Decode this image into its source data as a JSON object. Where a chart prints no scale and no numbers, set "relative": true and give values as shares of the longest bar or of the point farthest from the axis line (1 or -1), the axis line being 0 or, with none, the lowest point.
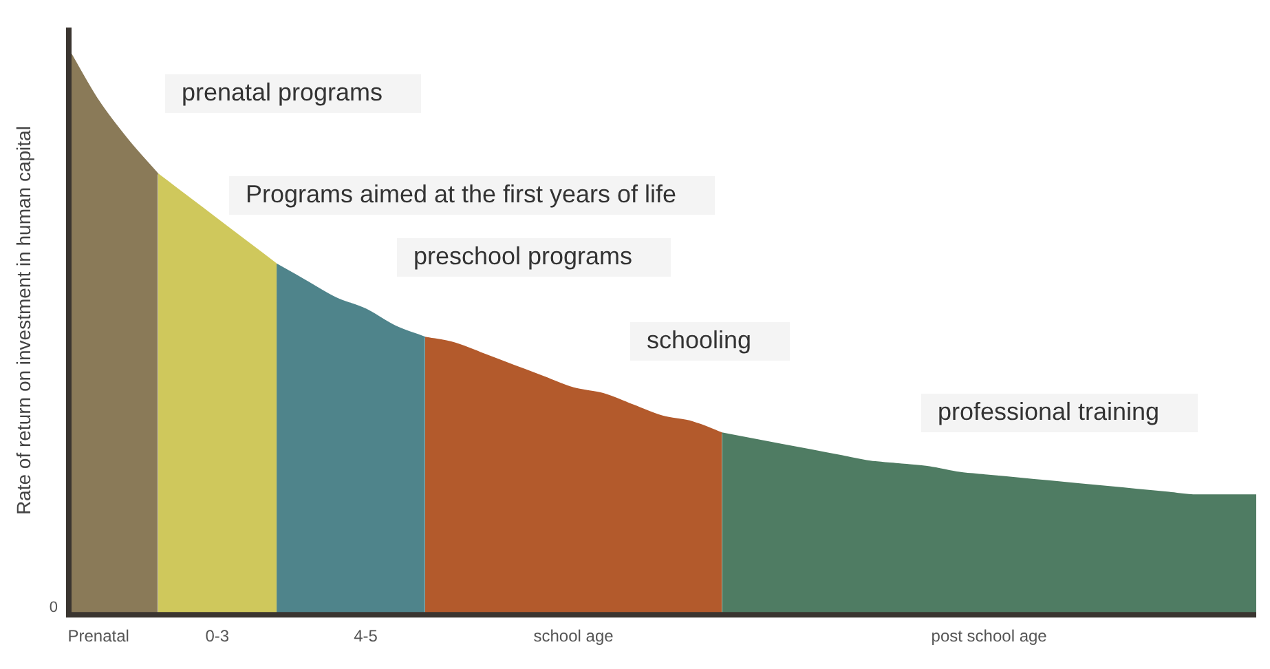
{
  "chart_data": {
    "type": "area",
    "relative": true,
    "ylabel": "Rate of return on investment in human capital",
    "categories": [
      null,
      "Prenatal",
      null,
      null,
      null,
      "0-3",
      null,
      null,
      null,
      null,
      "4-5",
      null,
      null,
      null,
      null,
      null,
      null,
      "school age",
      null,
      null,
      null,
      null,
      null,
      null,
      null,
      null,
      null,
      null,
      null,
      null,
      null,
      "post school age",
      null,
      null,
      null,
      null,
      null,
      null,
      null,
      null,
      null
    ],
    "series": [
      {
        "name": "prenatal programs",
        "color": "#8a7a58",
        "values": [
          1.0,
          0.91,
          0.84,
          0.78,
          null,
          null,
          null,
          null,
          null,
          null,
          null,
          null,
          null,
          null,
          null,
          null,
          null,
          null,
          null,
          null,
          null,
          null,
          null,
          null,
          null,
          null,
          null,
          null,
          null,
          null,
          null,
          null,
          null,
          null,
          null,
          null,
          null,
          null,
          null,
          null,
          null
        ]
      },
      {
        "name": "Programs aimed at the first years of life",
        "color": "#cfc85c",
        "values": [
          null,
          null,
          null,
          0.78,
          0.74,
          0.7,
          0.66,
          0.62,
          null,
          null,
          null,
          null,
          null,
          null,
          null,
          null,
          null,
          null,
          null,
          null,
          null,
          null,
          null,
          null,
          null,
          null,
          null,
          null,
          null,
          null,
          null,
          null,
          null,
          null,
          null,
          null,
          null,
          null,
          null,
          null,
          null
        ]
      },
      {
        "name": "preschool programs",
        "color": "#4f848b",
        "values": [
          null,
          null,
          null,
          null,
          null,
          null,
          null,
          0.62,
          0.59,
          0.56,
          0.54,
          0.51,
          0.49,
          null,
          null,
          null,
          null,
          null,
          null,
          null,
          null,
          null,
          null,
          null,
          null,
          null,
          null,
          null,
          null,
          null,
          null,
          null,
          null,
          null,
          null,
          null,
          null,
          null,
          null,
          null,
          null
        ]
      },
      {
        "name": "schooling",
        "color": "#b35a2c",
        "values": [
          null,
          null,
          null,
          null,
          null,
          null,
          null,
          null,
          null,
          null,
          null,
          null,
          0.49,
          0.48,
          0.46,
          0.44,
          0.42,
          0.4,
          0.39,
          0.37,
          0.35,
          0.34,
          0.32,
          null,
          null,
          null,
          null,
          null,
          null,
          null,
          null,
          null,
          null,
          null,
          null,
          null,
          null,
          null,
          null,
          null,
          null
        ]
      },
      {
        "name": "professional training",
        "color": "#4f7c63",
        "values": [
          null,
          null,
          null,
          null,
          null,
          null,
          null,
          null,
          null,
          null,
          null,
          null,
          null,
          null,
          null,
          null,
          null,
          null,
          null,
          null,
          null,
          null,
          0.32,
          0.31,
          0.3,
          0.29,
          0.28,
          0.27,
          0.265,
          0.26,
          0.25,
          0.245,
          0.24,
          0.235,
          0.23,
          0.225,
          0.22,
          0.215,
          0.21,
          0.21,
          0.21
        ]
      }
    ],
    "annotations": [
      "0"
    ],
    "legend": false,
    "grid": false
  }
}
